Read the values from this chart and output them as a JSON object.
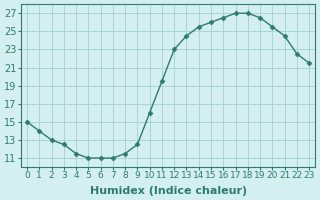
{
  "x": [
    0,
    1,
    2,
    3,
    4,
    5,
    6,
    7,
    8,
    9,
    10,
    11,
    12,
    13,
    14,
    15,
    16,
    17,
    18,
    19,
    20,
    21,
    22,
    23
  ],
  "y": [
    15,
    14,
    13,
    12.5,
    11.5,
    11,
    11,
    11,
    11.5,
    12.5,
    16,
    19.5,
    23,
    24.5,
    25.5,
    26,
    26.5,
    27,
    27,
    26.5,
    25.5,
    24.5,
    22.5,
    21.5
  ],
  "line_color": "#2d7c6e",
  "marker_color": "#2d7c6e",
  "bg_color": "#d4efef",
  "grid_color": "#aad4d4",
  "xlabel": "Humidex (Indice chaleur)",
  "xlim": [
    -0.5,
    23.5
  ],
  "ylim": [
    10,
    28
  ],
  "yticks": [
    11,
    13,
    15,
    17,
    19,
    21,
    23,
    25,
    27
  ],
  "xtick_labels": [
    "0",
    "1",
    "2",
    "3",
    "4",
    "5",
    "6",
    "7",
    "8",
    "9",
    "10",
    "11",
    "12",
    "13",
    "14",
    "15",
    "16",
    "17",
    "18",
    "19",
    "20",
    "21",
    "22",
    "23"
  ],
  "tick_color": "#2d7c6e",
  "axis_color": "#2d7c6e",
  "xlabel_fontsize": 8,
  "tick_fontsize": 7
}
